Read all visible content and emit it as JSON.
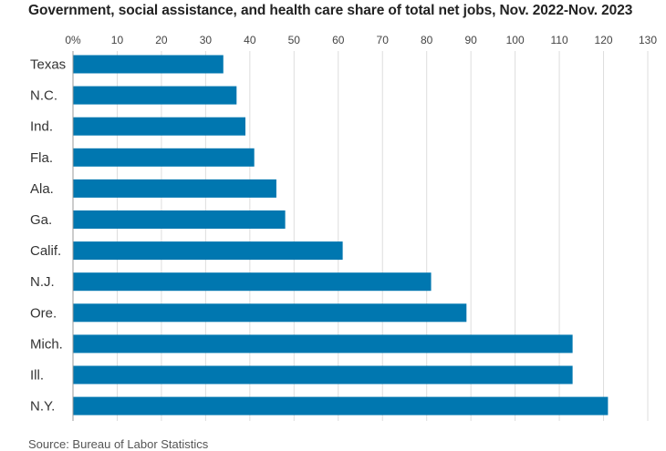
{
  "chart_data": {
    "type": "bar",
    "orientation": "horizontal",
    "title": "Government, social assistance, and health care share of total net jobs, Nov. 2022-Nov. 2023",
    "categories": [
      "Texas",
      "N.C.",
      "Ind.",
      "Fla.",
      "Ala.",
      "Ga.",
      "Calif.",
      "N.J.",
      "Ore.",
      "Mich.",
      "Ill.",
      "N.Y."
    ],
    "values": [
      34,
      37,
      39,
      41,
      46,
      48,
      61,
      81,
      89,
      113,
      113,
      121
    ],
    "xlim": [
      0,
      130
    ],
    "x_ticks": [
      "0%",
      "10",
      "20",
      "30",
      "40",
      "50",
      "60",
      "70",
      "80",
      "90",
      "100",
      "110",
      "120",
      "130"
    ],
    "grid": true,
    "bar_color": "#0077b0",
    "source": "Source: Bureau of Labor Statistics"
  }
}
